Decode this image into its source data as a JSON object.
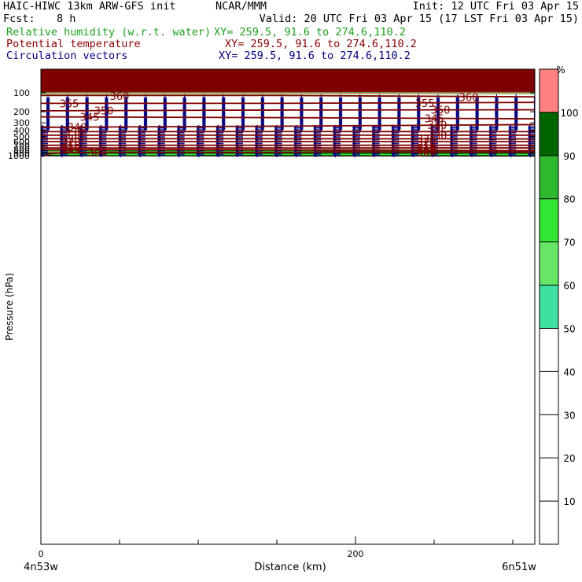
{
  "header": {
    "model": "HAIC-HIWC 13km ARW-GFS init",
    "org": "NCAR/MMM",
    "init": "Init: 12 UTC Fri 03 Apr 15",
    "fcst_label": "Fcst:",
    "fcst_value": "8 h",
    "valid": "Valid: 20 UTC Fri 03 Apr 15 (17 LST Fri 03 Apr 15)",
    "fields": [
      {
        "name": "Relative humidity (w.r.t. water)",
        "xy": "XY= 259.5, 91.6 to 274.6,110.2",
        "color": "#1f9e1f"
      },
      {
        "name": "Potential temperature",
        "xy": "XY= 259.5, 91.6 to 274.6,110.2",
        "color": "#8b0000"
      },
      {
        "name": "Circulation vectors",
        "xy": "XY= 259.5, 91.6 to 274.6,110.2",
        "color": "#00007f"
      }
    ]
  },
  "colors": {
    "rh_bands": [
      "#ff8080",
      "#006400",
      "#1a8c1a",
      "#2eb82e",
      "#33e633",
      "#66e566",
      "#40e0a0"
    ],
    "theta_line": "#7f0000",
    "vector": "#00007f",
    "top_band": "#7f0000"
  },
  "chart_data": {
    "type": "cross-section",
    "xlabel": "Distance (km)",
    "ylabel": "Pressure (hPa)",
    "x_ticks": [
      0,
      200
    ],
    "y_ticks": [
      100,
      200,
      300,
      400,
      500,
      600,
      700,
      800,
      900,
      1000
    ],
    "x_range": [
      0,
      315
    ],
    "y_range": [
      1040,
      30
    ],
    "y_scale": "log",
    "left_end_label": "4n53w",
    "right_end_label": "6n51w",
    "colorbar": {
      "unit": "%",
      "levels": [
        10,
        20,
        30,
        40,
        50,
        60,
        70,
        80,
        90,
        100
      ],
      "filled": [
        {
          "range": [
            50,
            60
          ],
          "color": "#40e0a0"
        },
        {
          "range": [
            60,
            70
          ],
          "color": "#66e566"
        },
        {
          "range": [
            70,
            80
          ],
          "color": "#33e633"
        },
        {
          "range": [
            80,
            90
          ],
          "color": "#2eb82e"
        },
        {
          "range": [
            90,
            100
          ],
          "color": "#006400"
        },
        {
          "range": [
            100,
            110
          ],
          "color": "#ff8080"
        }
      ]
    },
    "theta_contours": [
      {
        "value": 360,
        "points": [
          [
            0,
            110
          ],
          [
            150,
            110
          ],
          [
            315,
            116
          ]
        ],
        "labels": [
          [
            50,
            113
          ],
          [
            272,
            117
          ]
        ]
      },
      {
        "value": 355,
        "points": [
          [
            0,
            147
          ],
          [
            150,
            147
          ],
          [
            315,
            142
          ]
        ],
        "labels": [
          [
            18,
            147
          ],
          [
            244,
            145
          ]
        ]
      },
      {
        "value": 350,
        "points": [
          [
            0,
            193
          ],
          [
            150,
            188
          ],
          [
            315,
            186
          ]
        ],
        "labels": [
          [
            40,
            190
          ],
          [
            254,
            187
          ]
        ]
      },
      {
        "value": 345,
        "points": [
          [
            0,
            241
          ],
          [
            150,
            248
          ],
          [
            315,
            259
          ]
        ],
        "labels": [
          [
            31,
            242
          ],
          [
            250,
            256
          ]
        ]
      },
      {
        "value": 340,
        "points": [
          [
            0,
            353
          ],
          [
            150,
            339
          ],
          [
            315,
            320
          ]
        ],
        "labels": [
          [
            23,
            349
          ],
          [
            252,
            321
          ]
        ]
      },
      {
        "value": 335,
        "points": [
          [
            0,
            414
          ],
          [
            150,
            413
          ],
          [
            315,
            414
          ]
        ],
        "labels": [
          [
            21,
            414
          ],
          [
            252,
            414
          ]
        ]
      },
      {
        "value": 330,
        "points": [
          [
            0,
            471
          ],
          [
            150,
            471
          ],
          [
            315,
            471
          ]
        ],
        "labels": [
          [
            21,
            471
          ],
          [
            252,
            471
          ]
        ]
      },
      {
        "value": 325,
        "points": [
          [
            0,
            537
          ],
          [
            150,
            537
          ],
          [
            315,
            541
          ]
        ],
        "labels": [
          [
            19,
            537
          ],
          [
            245,
            540
          ]
        ]
      },
      {
        "value": 320,
        "points": [
          [
            0,
            598
          ],
          [
            150,
            598
          ],
          [
            315,
            598
          ]
        ],
        "labels": [
          [
            19,
            598
          ],
          [
            245,
            598
          ]
        ]
      },
      {
        "value": 315,
        "points": [
          [
            0,
            682
          ],
          [
            150,
            682
          ],
          [
            315,
            682
          ]
        ],
        "labels": [
          [
            19,
            682
          ],
          [
            245,
            682
          ]
        ]
      },
      {
        "value": 310,
        "points": [
          [
            0,
            752
          ],
          [
            150,
            752
          ],
          [
            315,
            751
          ]
        ],
        "labels": [
          [
            19,
            752
          ],
          [
            245,
            751
          ]
        ]
      },
      {
        "value": 305,
        "points": [
          [
            0,
            800
          ],
          [
            120,
            800
          ],
          [
            200,
            810
          ],
          [
            315,
            832
          ]
        ],
        "labels": [
          [
            19,
            800
          ],
          [
            245,
            822
          ]
        ]
      },
      {
        "value": 300,
        "points": [
          [
            2,
            1000
          ],
          [
            6,
            930
          ],
          [
            15,
            895
          ],
          [
            45,
            880
          ],
          [
            110,
            883
          ],
          [
            165,
            882
          ],
          [
            185,
            862
          ],
          [
            240,
            875
          ],
          [
            315,
            878
          ]
        ],
        "labels": [
          [
            36,
            884
          ],
          [
            245,
            873
          ]
        ]
      }
    ],
    "rh_layers": [
      {
        "range": [
          50,
          60
        ],
        "top": [
          [
            0,
            790
          ],
          [
            120,
            792
          ],
          [
            200,
            800
          ],
          [
            315,
            820
          ]
        ],
        "bottom": [
          [
            0,
            800
          ],
          [
            120,
            800
          ],
          [
            200,
            810
          ],
          [
            315,
            832
          ]
        ]
      },
      {
        "range": [
          60,
          70
        ],
        "top": [
          [
            0,
            800
          ],
          [
            120,
            800
          ],
          [
            200,
            810
          ],
          [
            315,
            832
          ]
        ],
        "bottom": [
          [
            0,
            810
          ],
          [
            120,
            810
          ],
          [
            200,
            822
          ],
          [
            315,
            842
          ]
        ]
      },
      {
        "range": [
          90,
          100
        ],
        "top": [
          [
            0,
            822
          ],
          [
            120,
            815
          ],
          [
            200,
            828
          ],
          [
            315,
            852
          ]
        ],
        "bottom": [
          [
            0,
            838
          ],
          [
            120,
            832
          ],
          [
            200,
            845
          ],
          [
            315,
            862
          ]
        ]
      },
      {
        "range": [
          100,
          110
        ],
        "top": [
          [
            0,
            855
          ],
          [
            12,
            856
          ],
          [
            22,
            870
          ],
          [
            120,
            865
          ],
          [
            145,
            865
          ],
          [
            150,
            880
          ],
          [
            175,
            882
          ],
          [
            200,
            875
          ],
          [
            315,
            868
          ]
        ],
        "bottom": [
          [
            0,
            880
          ],
          [
            15,
            885
          ],
          [
            60,
            893
          ],
          [
            120,
            890
          ],
          [
            145,
            892
          ],
          [
            150,
            902
          ],
          [
            175,
            902
          ],
          [
            200,
            890
          ],
          [
            315,
            885
          ]
        ]
      },
      {
        "range": [
          90,
          100
        ],
        "top": [
          [
            0,
            880
          ],
          [
            315,
            885
          ]
        ],
        "bottom": [
          [
            0,
            930
          ],
          [
            315,
            935
          ]
        ]
      },
      {
        "range": [
          90,
          100
        ],
        "top": [
          [
            0,
            985
          ],
          [
            315,
            985
          ]
        ],
        "bottom": [
          [
            0,
            1000
          ],
          [
            315,
            1008
          ]
        ]
      }
    ],
    "vectors": {
      "u_upper": -1,
      "w_upper": 1,
      "u_lower": -1,
      "w_lower": 0
    }
  }
}
